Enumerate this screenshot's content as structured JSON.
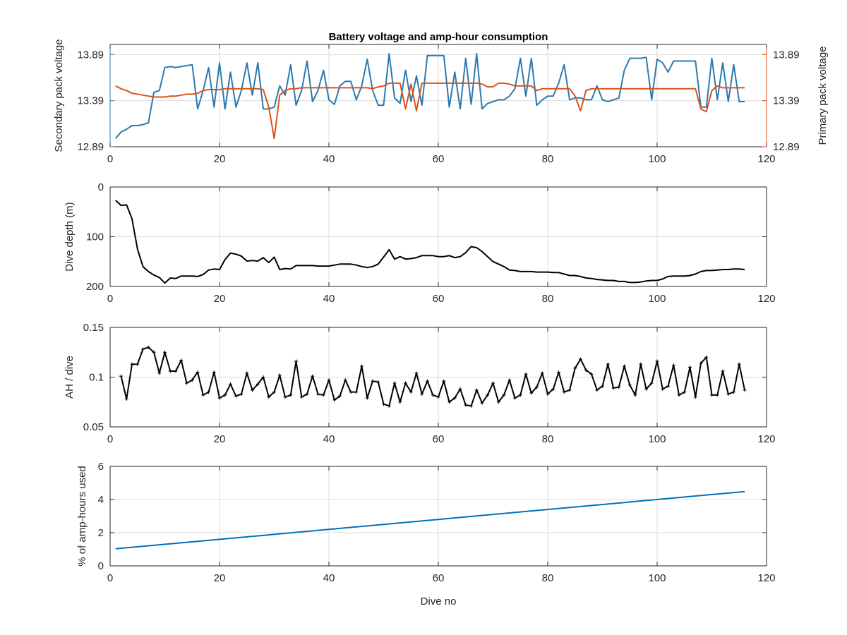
{
  "chart_data": [
    {
      "type": "line",
      "title": "Battery voltage and amp-hour consumption",
      "xlabel": "",
      "xlim": [
        0,
        120
      ],
      "xticks": [
        0,
        20,
        40,
        60,
        80,
        100,
        120
      ],
      "grid": true,
      "y_left": {
        "label": "Secondary pack voltage",
        "lim": [
          12.89,
          14.0
        ],
        "ticks": [
          "12.89",
          "13.39",
          "13.89"
        ],
        "tick_values": [
          12.89,
          13.39,
          13.89
        ],
        "color": "#2a7ab0"
      },
      "y_right": {
        "label": "Primary pack voltage",
        "lim": [
          12.89,
          14.0
        ],
        "ticks": [
          "12.89",
          "13.39",
          "13.89"
        ],
        "tick_values": [
          12.89,
          13.39,
          13.89
        ],
        "color": "#d95319"
      },
      "series": [
        {
          "axis": "left",
          "color": "#2a7ab0",
          "x": [
            1,
            2,
            3,
            4,
            5,
            6,
            7,
            8,
            9,
            10,
            11,
            12,
            13,
            14,
            15,
            16,
            17,
            18,
            19,
            20,
            21,
            22,
            23,
            24,
            25,
            26,
            27,
            28,
            29,
            30,
            31,
            32,
            33,
            34,
            35,
            36,
            37,
            38,
            39,
            40,
            41,
            42,
            43,
            44,
            45,
            46,
            47,
            48,
            49,
            50,
            51,
            52,
            53,
            54,
            55,
            56,
            57,
            58,
            59,
            60,
            61,
            62,
            63,
            64,
            65,
            66,
            67,
            68,
            69,
            70,
            71,
            72,
            73,
            74,
            75,
            76,
            77,
            78,
            79,
            80,
            81,
            82,
            83,
            84,
            85,
            86,
            87,
            88,
            89,
            90,
            91,
            92,
            93,
            94,
            95,
            96,
            97,
            98,
            99,
            100,
            101,
            102,
            103,
            104,
            105,
            106,
            107,
            108,
            109,
            110,
            111,
            112,
            113,
            114,
            115,
            116
          ],
          "values": [
            12.98,
            13.05,
            13.08,
            13.12,
            13.12,
            13.13,
            13.15,
            13.48,
            13.5,
            13.75,
            13.76,
            13.75,
            13.76,
            13.77,
            13.78,
            13.3,
            13.5,
            13.75,
            13.32,
            13.8,
            13.3,
            13.7,
            13.32,
            13.5,
            13.8,
            13.45,
            13.8,
            13.3,
            13.3,
            13.32,
            13.55,
            13.45,
            13.78,
            13.34,
            13.5,
            13.82,
            13.38,
            13.5,
            13.72,
            13.4,
            13.35,
            13.55,
            13.6,
            13.6,
            13.4,
            13.55,
            13.84,
            13.5,
            13.34,
            13.34,
            13.9,
            13.42,
            13.36,
            13.72,
            13.38,
            13.66,
            13.34,
            13.88,
            13.88,
            13.88,
            13.88,
            13.32,
            13.7,
            13.3,
            13.85,
            13.35,
            13.9,
            13.3,
            13.36,
            13.38,
            13.4,
            13.4,
            13.44,
            13.52,
            13.85,
            13.44,
            13.85,
            13.34,
            13.4,
            13.44,
            13.44,
            13.58,
            13.78,
            13.4,
            13.42,
            13.42,
            13.4,
            13.4,
            13.55,
            13.4,
            13.38,
            13.4,
            13.42,
            13.72,
            13.85,
            13.85,
            13.85,
            13.86,
            13.4,
            13.84,
            13.8,
            13.7,
            13.82,
            13.82,
            13.82,
            13.82,
            13.82,
            13.32,
            13.32,
            13.85,
            13.4,
            13.8,
            13.38,
            13.78,
            13.38,
            13.38
          ]
        },
        {
          "axis": "right",
          "color": "#d95319",
          "x": [
            1,
            2,
            3,
            4,
            5,
            6,
            7,
            8,
            9,
            10,
            11,
            12,
            13,
            14,
            15,
            16,
            17,
            18,
            19,
            20,
            21,
            22,
            23,
            24,
            25,
            26,
            27,
            28,
            29,
            30,
            31,
            32,
            33,
            34,
            35,
            36,
            37,
            38,
            39,
            40,
            41,
            42,
            43,
            44,
            45,
            46,
            47,
            48,
            49,
            50,
            51,
            52,
            53,
            54,
            55,
            56,
            57,
            58,
            59,
            60,
            61,
            62,
            63,
            64,
            65,
            66,
            67,
            68,
            69,
            70,
            71,
            72,
            73,
            74,
            75,
            76,
            77,
            78,
            79,
            80,
            81,
            82,
            83,
            84,
            85,
            86,
            87,
            88,
            89,
            90,
            91,
            92,
            93,
            94,
            95,
            96,
            97,
            98,
            99,
            100,
            101,
            102,
            103,
            104,
            105,
            106,
            107,
            108,
            109,
            110,
            111,
            112,
            113,
            114,
            115,
            116
          ],
          "values": [
            13.55,
            13.52,
            13.5,
            13.47,
            13.46,
            13.45,
            13.44,
            13.43,
            13.43,
            13.43,
            13.44,
            13.44,
            13.45,
            13.46,
            13.46,
            13.47,
            13.5,
            13.51,
            13.51,
            13.51,
            13.52,
            13.52,
            13.52,
            13.52,
            13.52,
            13.52,
            13.52,
            13.51,
            13.32,
            12.98,
            13.45,
            13.5,
            13.52,
            13.52,
            13.53,
            13.53,
            13.53,
            13.53,
            13.53,
            13.53,
            13.53,
            13.53,
            13.53,
            13.53,
            13.53,
            13.53,
            13.53,
            13.52,
            13.54,
            13.55,
            13.58,
            13.58,
            13.58,
            13.3,
            13.57,
            13.28,
            13.58,
            13.58,
            13.58,
            13.58,
            13.58,
            13.58,
            13.58,
            13.58,
            13.58,
            13.58,
            13.58,
            13.57,
            13.54,
            13.54,
            13.58,
            13.58,
            13.57,
            13.55,
            13.55,
            13.55,
            13.55,
            13.5,
            13.52,
            13.52,
            13.52,
            13.52,
            13.52,
            13.52,
            13.44,
            13.28,
            13.5,
            13.52,
            13.52,
            13.52,
            13.52,
            13.52,
            13.52,
            13.52,
            13.52,
            13.52,
            13.52,
            13.52,
            13.52,
            13.52,
            13.52,
            13.52,
            13.52,
            13.52,
            13.52,
            13.52,
            13.52,
            13.3,
            13.27,
            13.5,
            13.55,
            13.53,
            13.53,
            13.53,
            13.53,
            13.53
          ]
        }
      ]
    },
    {
      "type": "line",
      "title": "",
      "xlabel": "",
      "ylabel": "Dive depth (m)",
      "xlim": [
        0,
        120
      ],
      "xticks": [
        0,
        20,
        40,
        60,
        80,
        100,
        120
      ],
      "ylim": [
        0,
        200
      ],
      "y_reversed": true,
      "yticks": [
        0,
        100,
        200
      ],
      "grid": true,
      "series": [
        {
          "color": "#000000",
          "x": [
            1,
            2,
            3,
            4,
            5,
            6,
            7,
            8,
            9,
            10,
            11,
            12,
            13,
            14,
            15,
            16,
            17,
            18,
            19,
            20,
            21,
            22,
            23,
            24,
            25,
            26,
            27,
            28,
            29,
            30,
            31,
            32,
            33,
            34,
            35,
            36,
            37,
            38,
            39,
            40,
            41,
            42,
            43,
            44,
            45,
            46,
            47,
            48,
            49,
            50,
            51,
            52,
            53,
            54,
            55,
            56,
            57,
            58,
            59,
            60,
            61,
            62,
            63,
            64,
            65,
            66,
            67,
            68,
            69,
            70,
            71,
            72,
            73,
            74,
            75,
            76,
            77,
            78,
            79,
            80,
            81,
            82,
            83,
            84,
            85,
            86,
            87,
            88,
            89,
            90,
            91,
            92,
            93,
            94,
            95,
            96,
            97,
            98,
            99,
            100,
            101,
            102,
            103,
            104,
            105,
            106,
            107,
            108,
            109,
            110,
            111,
            112,
            113,
            114,
            115,
            116
          ],
          "values": [
            27,
            37,
            36,
            64,
            125,
            160,
            170,
            177,
            182,
            193,
            183,
            184,
            179,
            179,
            179,
            180,
            176,
            167,
            165,
            166,
            146,
            133,
            135,
            139,
            149,
            148,
            149,
            142,
            152,
            141,
            166,
            164,
            165,
            158,
            158,
            158,
            158,
            159,
            159,
            159,
            157,
            155,
            155,
            155,
            157,
            160,
            162,
            160,
            155,
            141,
            126,
            145,
            140,
            145,
            144,
            142,
            138,
            138,
            138,
            140,
            140,
            138,
            142,
            140,
            132,
            120,
            122,
            130,
            140,
            150,
            155,
            160,
            167,
            168,
            170,
            170,
            170,
            171,
            171,
            171,
            172,
            172,
            175,
            178,
            178,
            180,
            183,
            184,
            186,
            187,
            188,
            188,
            190,
            190,
            192,
            192,
            191,
            189,
            188,
            188,
            185,
            180,
            179,
            179,
            179,
            178,
            175,
            170,
            168,
            168,
            167,
            166,
            166,
            165,
            165,
            166
          ]
        }
      ]
    },
    {
      "type": "line",
      "title": "",
      "xlabel": "",
      "ylabel": "AH / dive",
      "xlim": [
        0,
        120
      ],
      "xticks": [
        0,
        20,
        40,
        60,
        80,
        100,
        120
      ],
      "ylim": [
        0.05,
        0.15
      ],
      "yticks": [
        "0.05",
        "0.1",
        "0.15"
      ],
      "ytick_values": [
        0.05,
        0.1,
        0.15
      ],
      "grid": true,
      "marker": "cross",
      "series": [
        {
          "color": "#000000",
          "x": [
            2,
            3,
            4,
            5,
            6,
            7,
            8,
            9,
            10,
            11,
            12,
            13,
            14,
            15,
            16,
            17,
            18,
            19,
            20,
            21,
            22,
            23,
            24,
            25,
            26,
            27,
            28,
            29,
            30,
            31,
            32,
            33,
            34,
            35,
            36,
            37,
            38,
            39,
            40,
            41,
            42,
            43,
            44,
            45,
            46,
            47,
            48,
            49,
            50,
            51,
            52,
            53,
            54,
            55,
            56,
            57,
            58,
            59,
            60,
            61,
            62,
            63,
            64,
            65,
            66,
            67,
            68,
            69,
            70,
            71,
            72,
            73,
            74,
            75,
            76,
            77,
            78,
            79,
            80,
            81,
            82,
            83,
            84,
            85,
            86,
            87,
            88,
            89,
            90,
            91,
            92,
            93,
            94,
            95,
            96,
            97,
            98,
            99,
            100,
            101,
            102,
            103,
            104,
            105,
            106,
            107,
            108,
            109,
            110,
            111,
            112,
            113,
            114,
            115,
            116
          ],
          "values": [
            0.101,
            0.078,
            0.113,
            0.113,
            0.128,
            0.13,
            0.125,
            0.104,
            0.125,
            0.106,
            0.106,
            0.117,
            0.094,
            0.097,
            0.105,
            0.082,
            0.085,
            0.105,
            0.079,
            0.082,
            0.093,
            0.081,
            0.083,
            0.104,
            0.087,
            0.093,
            0.1,
            0.08,
            0.085,
            0.102,
            0.08,
            0.082,
            0.116,
            0.08,
            0.083,
            0.101,
            0.083,
            0.082,
            0.097,
            0.077,
            0.081,
            0.097,
            0.085,
            0.085,
            0.111,
            0.079,
            0.096,
            0.095,
            0.073,
            0.071,
            0.094,
            0.075,
            0.094,
            0.085,
            0.104,
            0.083,
            0.096,
            0.082,
            0.08,
            0.096,
            0.075,
            0.079,
            0.088,
            0.072,
            0.071,
            0.087,
            0.074,
            0.082,
            0.094,
            0.075,
            0.082,
            0.097,
            0.079,
            0.082,
            0.103,
            0.084,
            0.09,
            0.104,
            0.083,
            0.088,
            0.105,
            0.085,
            0.087,
            0.109,
            0.118,
            0.107,
            0.103,
            0.087,
            0.091,
            0.113,
            0.089,
            0.09,
            0.111,
            0.092,
            0.082,
            0.113,
            0.088,
            0.094,
            0.116,
            0.088,
            0.091,
            0.112,
            0.082,
            0.085,
            0.11,
            0.08,
            0.114,
            0.12,
            0.082,
            0.082,
            0.106,
            0.083,
            0.085,
            0.113,
            0.087
          ]
        }
      ]
    },
    {
      "type": "line",
      "title": "",
      "xlabel": "Dive no",
      "ylabel": "% of amp-hours used",
      "xlim": [
        0,
        120
      ],
      "xticks": [
        0,
        20,
        40,
        60,
        80,
        100,
        120
      ],
      "ylim": [
        0,
        6
      ],
      "yticks": [
        0,
        2,
        4,
        6
      ],
      "grid": true,
      "series": [
        {
          "color": "#0072bd",
          "x": [
            1,
            116
          ],
          "values": [
            1.03,
            4.48
          ]
        }
      ]
    }
  ]
}
